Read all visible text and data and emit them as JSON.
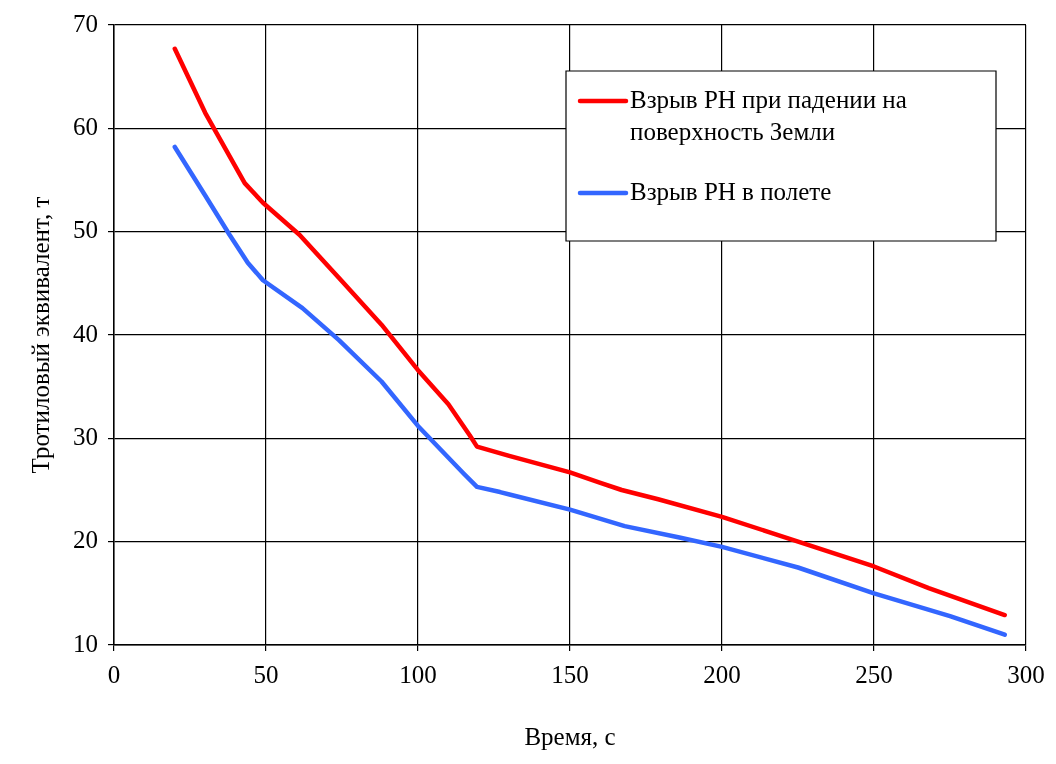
{
  "chart_data": {
    "type": "line",
    "xlabel": "Время, с",
    "ylabel": "Тротиловый эквивалент, т",
    "xlim": [
      0,
      300
    ],
    "xticks": [
      0,
      50,
      100,
      150,
      200,
      250,
      300
    ],
    "ylim": [
      10,
      70
    ],
    "yticks": [
      10,
      20,
      30,
      40,
      50,
      60,
      70
    ],
    "grid": true,
    "legend": "top right",
    "marker": "none",
    "line_style": "solid",
    "series": [
      {
        "name": "Взрыв РН при падении на поверхность Земли",
        "color": "#ff0000",
        "x": [
          20,
          30,
          43,
          49,
          61,
          75,
          88,
          100,
          110,
          117,
          119.4,
          130,
          150,
          160,
          167,
          179,
          200,
          222,
          250,
          268,
          293
        ],
        "values": [
          67.7,
          61.5,
          54.7,
          52.8,
          49.7,
          45.2,
          41,
          36.6,
          33.3,
          30.3,
          29.2,
          28.3,
          26.7,
          25.7,
          25,
          24.1,
          22.4,
          20.3,
          17.6,
          15.5,
          12.9
        ]
      },
      {
        "name": "Взрыв РН в полете",
        "color": "#3366ff",
        "x": [
          20,
          30,
          38,
          44,
          49,
          62,
          74,
          88,
          100,
          115,
          119.4,
          127,
          150,
          168,
          186,
          200,
          225,
          250,
          275,
          293
        ],
        "values": [
          58.2,
          53.5,
          49.7,
          47,
          45.3,
          42.6,
          39.5,
          35.5,
          31.2,
          26.6,
          25.3,
          24.8,
          23.1,
          21.5,
          20.4,
          19.5,
          17.5,
          15,
          12.8,
          11
        ]
      }
    ]
  }
}
